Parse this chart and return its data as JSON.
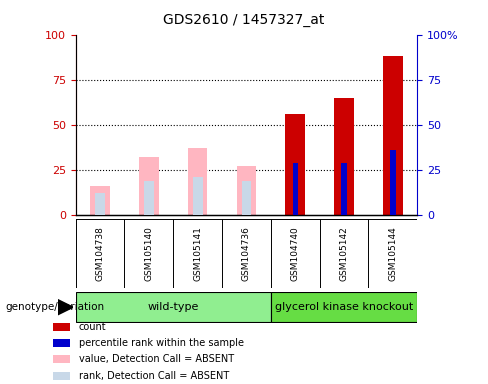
{
  "title": "GDS2610 / 1457327_at",
  "samples": [
    "GSM104738",
    "GSM105140",
    "GSM105141",
    "GSM104736",
    "GSM104740",
    "GSM105142",
    "GSM105144"
  ],
  "groups": [
    "wild-type",
    "wild-type",
    "wild-type",
    "wild-type",
    "glycerol kinase knockout",
    "glycerol kinase knockout",
    "glycerol kinase knockout"
  ],
  "absent_value": [
    16,
    32,
    37,
    27,
    null,
    null,
    null
  ],
  "absent_rank": [
    12,
    19,
    21,
    19,
    null,
    null,
    null
  ],
  "count": [
    null,
    null,
    null,
    null,
    56,
    65,
    88
  ],
  "percentile_rank": [
    null,
    null,
    null,
    null,
    29,
    29,
    36
  ],
  "ylim_left": [
    0,
    100
  ],
  "ylim_right": [
    0,
    100
  ],
  "color_count": "#cc0000",
  "color_percentile": "#0000cc",
  "color_absent_value": "#ffb6c1",
  "color_absent_rank": "#c8d8e8",
  "plot_bg_color": "#ffffff",
  "label_color_left": "#cc0000",
  "label_color_right": "#0000cc",
  "group_label": "genotype/variation",
  "group_wild_type_label": "wild-type",
  "group_knockout_label": "glycerol kinase knockout",
  "wt_color": "#90EE90",
  "ko_color": "#66DD44",
  "legend_items": [
    {
      "color": "#cc0000",
      "label": "count"
    },
    {
      "color": "#0000cc",
      "label": "percentile rank within the sample"
    },
    {
      "color": "#ffb6c1",
      "label": "value, Detection Call = ABSENT"
    },
    {
      "color": "#c8d8e8",
      "label": "rank, Detection Call = ABSENT"
    }
  ]
}
